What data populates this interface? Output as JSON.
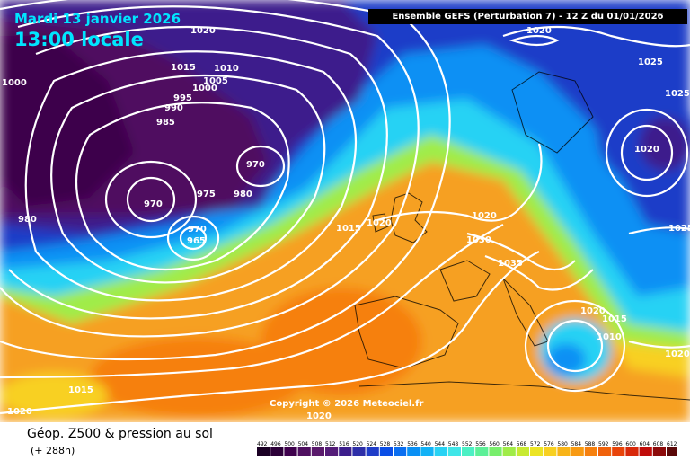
{
  "header": {
    "date": "Mardi 13 janvier 2026",
    "time": "13:00 locale",
    "run_info": "Ensemble GEFS  (Perturbation 7)  -  12 Z du 01/01/2026"
  },
  "copyright": "Copyright © 2026 Meteociel.fr",
  "footer": {
    "title": "Géop. Z500 & pression au sol",
    "subtitle": "(+ 288h)"
  },
  "legend": {
    "ticks": [
      "492",
      "496",
      "500",
      "504",
      "508",
      "512",
      "516",
      "520",
      "524",
      "528",
      "532",
      "536",
      "540",
      "544",
      "548",
      "552",
      "556",
      "560",
      "564",
      "568",
      "572",
      "576",
      "580",
      "584",
      "588",
      "592",
      "596",
      "600",
      "604",
      "608",
      "612"
    ],
    "colors": [
      "#1a0024",
      "#2c0038",
      "#3e004c",
      "#4f1060",
      "#5a1a6c",
      "#541c78",
      "#3c1e8c",
      "#2d2ea8",
      "#1e3cc8",
      "#0a4ee6",
      "#0a6ef0",
      "#0a90f4",
      "#12b2f6",
      "#28d2f4",
      "#40e6e8",
      "#4cf0c4",
      "#5cf098",
      "#78ee6c",
      "#a0ec48",
      "#c8ea32",
      "#ece424",
      "#f8d020",
      "#f8b418",
      "#f89a12",
      "#f6800e",
      "#f0620c",
      "#e8440a",
      "#d8280a",
      "#c00c0a",
      "#8c0a0a",
      "#5a0808"
    ],
    "swatch_count": 31
  },
  "isobar_labels": [
    "1020",
    "1015",
    "1010",
    "1005",
    "1000",
    "995",
    "990",
    "985",
    "970",
    "975",
    "980",
    "970",
    "970",
    "965",
    "980",
    "1000",
    "1020",
    "1025",
    "1020",
    "1025",
    "1020",
    "1015",
    "1020",
    "1025",
    "1030",
    "1035",
    "1020",
    "1015",
    "1010",
    "1020",
    "1015",
    "1020",
    "1020"
  ],
  "colors": {
    "header_text": "#00e5ff",
    "run_box_bg": "#000000",
    "isobar": "#ffffff"
  }
}
